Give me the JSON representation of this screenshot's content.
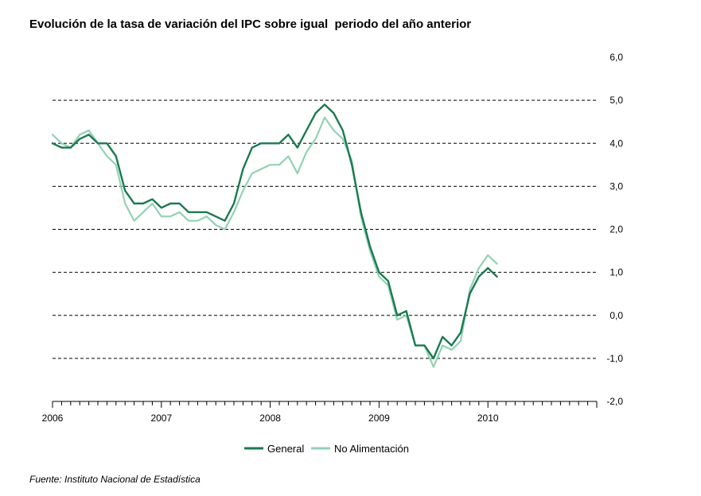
{
  "title": "Evolución de la tasa de variación del IPC sobre igual  periodo del año anterior",
  "source": "Fuente: Instituto Nacional de Estadística",
  "chart_data": {
    "type": "line",
    "title": "Evolución de la tasa de variación del IPC sobre igual  periodo del año anterior",
    "xlabel": "",
    "ylabel": "",
    "x_start_year": 2006,
    "x_ticks": [
      "2006",
      "2007",
      "2008",
      "2009",
      "2010"
    ],
    "xlim": [
      2006,
      2011
    ],
    "ylim": [
      -2,
      6
    ],
    "y_ticks": [
      "6,0",
      "5,0",
      "4,0",
      "3,0",
      "2,0",
      "1,0",
      "0,0",
      "-1,0",
      "-2,0"
    ],
    "y_tick_values": [
      6,
      5,
      4,
      3,
      2,
      1,
      0,
      -1,
      -2
    ],
    "y_axis_side": "right",
    "grid": "horizontal dashed",
    "legend_position": "bottom-center",
    "colors": {
      "general": "#1a7a50",
      "no_alimentacion": "#93d1b4"
    },
    "series": [
      {
        "name": "General",
        "color": "#1a7a50",
        "values": [
          4.0,
          3.9,
          3.9,
          4.1,
          4.2,
          4.0,
          4.0,
          3.7,
          2.9,
          2.6,
          2.6,
          2.7,
          2.5,
          2.6,
          2.6,
          2.4,
          2.4,
          2.4,
          2.3,
          2.2,
          2.6,
          3.4,
          3.9,
          4.0,
          4.0,
          4.0,
          4.2,
          3.9,
          4.3,
          4.7,
          4.9,
          4.7,
          4.3,
          3.5,
          2.4,
          1.6,
          1.0,
          0.8,
          0.0,
          0.1,
          -0.7,
          -0.7,
          -1.0,
          -0.5,
          -0.7,
          -0.4,
          0.5,
          0.9,
          1.1,
          0.9
        ]
      },
      {
        "name": "No Alimentación",
        "color": "#93d1b4",
        "values": [
          4.2,
          4.0,
          3.9,
          4.2,
          4.3,
          4.0,
          3.7,
          3.5,
          2.6,
          2.2,
          2.4,
          2.6,
          2.3,
          2.3,
          2.4,
          2.2,
          2.2,
          2.3,
          2.1,
          2.0,
          2.4,
          2.9,
          3.3,
          3.4,
          3.5,
          3.5,
          3.7,
          3.3,
          3.8,
          4.1,
          4.6,
          4.3,
          4.1,
          3.6,
          2.3,
          1.5,
          0.9,
          0.7,
          -0.1,
          0.0,
          -0.7,
          -0.7,
          -1.2,
          -0.7,
          -0.8,
          -0.6,
          0.6,
          1.1,
          1.4,
          1.2
        ]
      }
    ]
  }
}
